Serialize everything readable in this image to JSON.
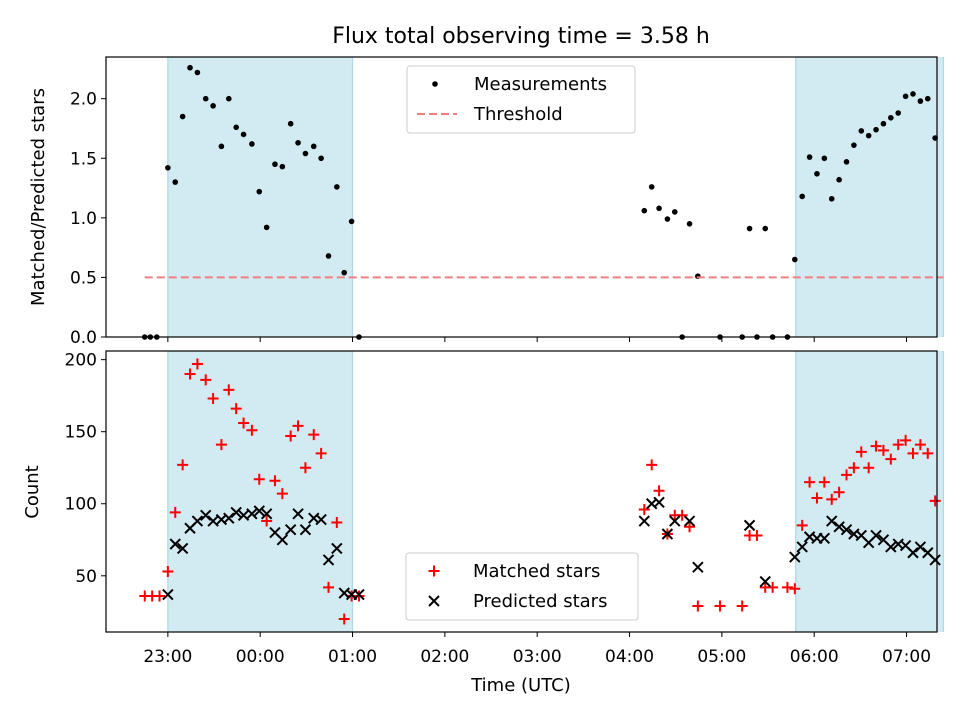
{
  "chart_data": {
    "title": "Flux total observing time = 3.58 h",
    "xlabel": "Time (UTC)",
    "x_unit": "hours (UTC, continuous past midnight)",
    "xlim": [
      22.33,
      31.33
    ],
    "xticks": [
      {
        "label": "23:00",
        "x": 23
      },
      {
        "label": "00:00",
        "x": 24
      },
      {
        "label": "01:00",
        "x": 25
      },
      {
        "label": "02:00",
        "x": 26
      },
      {
        "label": "03:00",
        "x": 27
      },
      {
        "label": "04:00",
        "x": 28
      },
      {
        "label": "05:00",
        "x": 29
      },
      {
        "label": "06:00",
        "x": 30
      },
      {
        "label": "07:00",
        "x": 31
      }
    ],
    "shaded_intervals": [
      [
        23.0,
        25.0
      ],
      [
        29.8,
        31.4
      ]
    ],
    "shade_color": "#add8e6",
    "panels": [
      {
        "type": "scatter",
        "ylabel": "Matched/Predicted stars",
        "ylim": [
          0,
          2.35
        ],
        "yticks": [
          "0.0",
          "0.5",
          "1.0",
          "1.5",
          "2.0"
        ],
        "ytick_values": [
          0,
          0.5,
          1.0,
          1.5,
          2.0
        ],
        "legend_position": "top-center",
        "series": [
          {
            "name": "Measurements",
            "marker": "dot",
            "color": "#000000",
            "points": [
              [
                22.75,
                0
              ],
              [
                22.81,
                0
              ],
              [
                22.88,
                0
              ],
              [
                23.0,
                1.42
              ],
              [
                23.08,
                1.3
              ],
              [
                23.16,
                1.85
              ],
              [
                23.24,
                2.26
              ],
              [
                23.32,
                2.22
              ],
              [
                23.41,
                2.0
              ],
              [
                23.49,
                1.94
              ],
              [
                23.58,
                1.6
              ],
              [
                23.66,
                2.0
              ],
              [
                23.74,
                1.76
              ],
              [
                23.82,
                1.7
              ],
              [
                23.91,
                1.62
              ],
              [
                23.99,
                1.22
              ],
              [
                24.07,
                0.92
              ],
              [
                24.16,
                1.45
              ],
              [
                24.24,
                1.43
              ],
              [
                24.33,
                1.79
              ],
              [
                24.41,
                1.63
              ],
              [
                24.49,
                1.54
              ],
              [
                24.58,
                1.6
              ],
              [
                24.66,
                1.5
              ],
              [
                24.74,
                0.68
              ],
              [
                24.83,
                1.26
              ],
              [
                24.91,
                0.54
              ],
              [
                24.99,
                0.97
              ],
              [
                25.07,
                0
              ],
              [
                28.16,
                1.06
              ],
              [
                28.24,
                1.26
              ],
              [
                28.32,
                1.08
              ],
              [
                28.41,
                0.99
              ],
              [
                28.49,
                1.05
              ],
              [
                28.57,
                0
              ],
              [
                28.65,
                0.95
              ],
              [
                28.74,
                0.51
              ],
              [
                28.98,
                0
              ],
              [
                29.22,
                0
              ],
              [
                29.3,
                0.91
              ],
              [
                29.38,
                0
              ],
              [
                29.47,
                0.91
              ],
              [
                29.55,
                0
              ],
              [
                29.71,
                0
              ],
              [
                29.79,
                0.65
              ],
              [
                29.87,
                1.18
              ],
              [
                29.95,
                1.51
              ],
              [
                30.03,
                1.37
              ],
              [
                30.11,
                1.5
              ],
              [
                30.19,
                1.16
              ],
              [
                30.27,
                1.32
              ],
              [
                30.35,
                1.47
              ],
              [
                30.43,
                1.61
              ],
              [
                30.51,
                1.73
              ],
              [
                30.59,
                1.69
              ],
              [
                30.67,
                1.74
              ],
              [
                30.75,
                1.79
              ],
              [
                30.83,
                1.84
              ],
              [
                30.91,
                1.88
              ],
              [
                30.99,
                2.02
              ],
              [
                31.07,
                2.04
              ],
              [
                31.15,
                1.98
              ],
              [
                31.23,
                2.0
              ],
              [
                31.31,
                1.67
              ]
            ]
          },
          {
            "name": "Threshold",
            "style": "dashed-line",
            "color": "#f08080",
            "x": [
              22.75,
              31.4
            ],
            "y": [
              0.5,
              0.5
            ]
          }
        ]
      },
      {
        "type": "scatter",
        "ylabel": "Count",
        "ylim": [
          11,
          206
        ],
        "yticks": [
          "50",
          "100",
          "150",
          "200"
        ],
        "ytick_values": [
          50,
          100,
          150,
          200
        ],
        "legend_position": "bottom-center",
        "series": [
          {
            "name": "Matched stars",
            "marker": "plus",
            "color": "#ff0000",
            "points": [
              [
                22.75,
                36
              ],
              [
                22.83,
                36
              ],
              [
                22.91,
                36
              ],
              [
                23.0,
                53
              ],
              [
                23.08,
                94
              ],
              [
                23.16,
                127
              ],
              [
                23.24,
                190
              ],
              [
                23.32,
                197
              ],
              [
                23.41,
                186
              ],
              [
                23.49,
                173
              ],
              [
                23.58,
                141
              ],
              [
                23.66,
                179
              ],
              [
                23.74,
                166
              ],
              [
                23.82,
                156
              ],
              [
                23.91,
                151
              ],
              [
                23.99,
                117
              ],
              [
                24.07,
                88
              ],
              [
                24.16,
                116
              ],
              [
                24.24,
                107
              ],
              [
                24.33,
                147
              ],
              [
                24.41,
                154
              ],
              [
                24.49,
                125
              ],
              [
                24.58,
                148
              ],
              [
                24.66,
                135
              ],
              [
                24.74,
                42
              ],
              [
                24.83,
                87
              ],
              [
                24.91,
                20
              ],
              [
                24.99,
                36
              ],
              [
                25.07,
                36
              ],
              [
                28.16,
                96
              ],
              [
                28.24,
                127
              ],
              [
                28.32,
                109
              ],
              [
                28.41,
                79
              ],
              [
                28.49,
                92
              ],
              [
                28.57,
                92
              ],
              [
                28.65,
                84
              ],
              [
                28.74,
                29
              ],
              [
                28.98,
                29
              ],
              [
                29.22,
                29
              ],
              [
                29.3,
                78
              ],
              [
                29.38,
                78
              ],
              [
                29.47,
                42
              ],
              [
                29.55,
                42
              ],
              [
                29.71,
                42
              ],
              [
                29.79,
                41
              ],
              [
                29.87,
                85
              ],
              [
                29.95,
                115
              ],
              [
                30.03,
                104
              ],
              [
                30.11,
                115
              ],
              [
                30.19,
                103
              ],
              [
                30.27,
                108
              ],
              [
                30.35,
                120
              ],
              [
                30.43,
                125
              ],
              [
                30.51,
                136
              ],
              [
                30.59,
                125
              ],
              [
                30.67,
                140
              ],
              [
                30.75,
                137
              ],
              [
                30.83,
                131
              ],
              [
                30.91,
                141
              ],
              [
                30.99,
                144
              ],
              [
                31.07,
                135
              ],
              [
                31.15,
                141
              ],
              [
                31.23,
                135
              ],
              [
                31.31,
                102
              ]
            ]
          },
          {
            "name": "Predicted stars",
            "marker": "x",
            "color": "#000000",
            "points": [
              [
                23.0,
                37
              ],
              [
                23.08,
                72
              ],
              [
                23.16,
                69
              ],
              [
                23.24,
                83
              ],
              [
                23.32,
                88
              ],
              [
                23.41,
                92
              ],
              [
                23.49,
                88
              ],
              [
                23.58,
                89
              ],
              [
                23.66,
                90
              ],
              [
                23.74,
                94
              ],
              [
                23.82,
                92
              ],
              [
                23.91,
                93
              ],
              [
                23.99,
                95
              ],
              [
                24.07,
                93
              ],
              [
                24.16,
                80
              ],
              [
                24.24,
                75
              ],
              [
                24.33,
                82
              ],
              [
                24.41,
                93
              ],
              [
                24.49,
                82
              ],
              [
                24.58,
                90
              ],
              [
                24.66,
                89
              ],
              [
                24.74,
                61
              ],
              [
                24.83,
                69
              ],
              [
                24.91,
                38
              ],
              [
                24.99,
                37
              ],
              [
                25.07,
                37
              ],
              [
                28.16,
                88
              ],
              [
                28.24,
                100
              ],
              [
                28.32,
                101
              ],
              [
                28.41,
                79
              ],
              [
                28.49,
                88
              ],
              [
                28.65,
                88
              ],
              [
                28.74,
                56
              ],
              [
                29.3,
                85
              ],
              [
                29.47,
                46
              ],
              [
                29.79,
                63
              ],
              [
                29.87,
                70
              ],
              [
                29.95,
                77
              ],
              [
                30.03,
                76
              ],
              [
                30.11,
                76
              ],
              [
                30.19,
                88
              ],
              [
                30.27,
                84
              ],
              [
                30.35,
                82
              ],
              [
                30.43,
                79
              ],
              [
                30.51,
                78
              ],
              [
                30.59,
                73
              ],
              [
                30.67,
                78
              ],
              [
                30.75,
                75
              ],
              [
                30.83,
                70
              ],
              [
                30.91,
                72
              ],
              [
                30.99,
                71
              ],
              [
                31.07,
                66
              ],
              [
                31.15,
                70
              ],
              [
                31.23,
                66
              ],
              [
                31.31,
                61
              ]
            ]
          }
        ]
      }
    ]
  }
}
